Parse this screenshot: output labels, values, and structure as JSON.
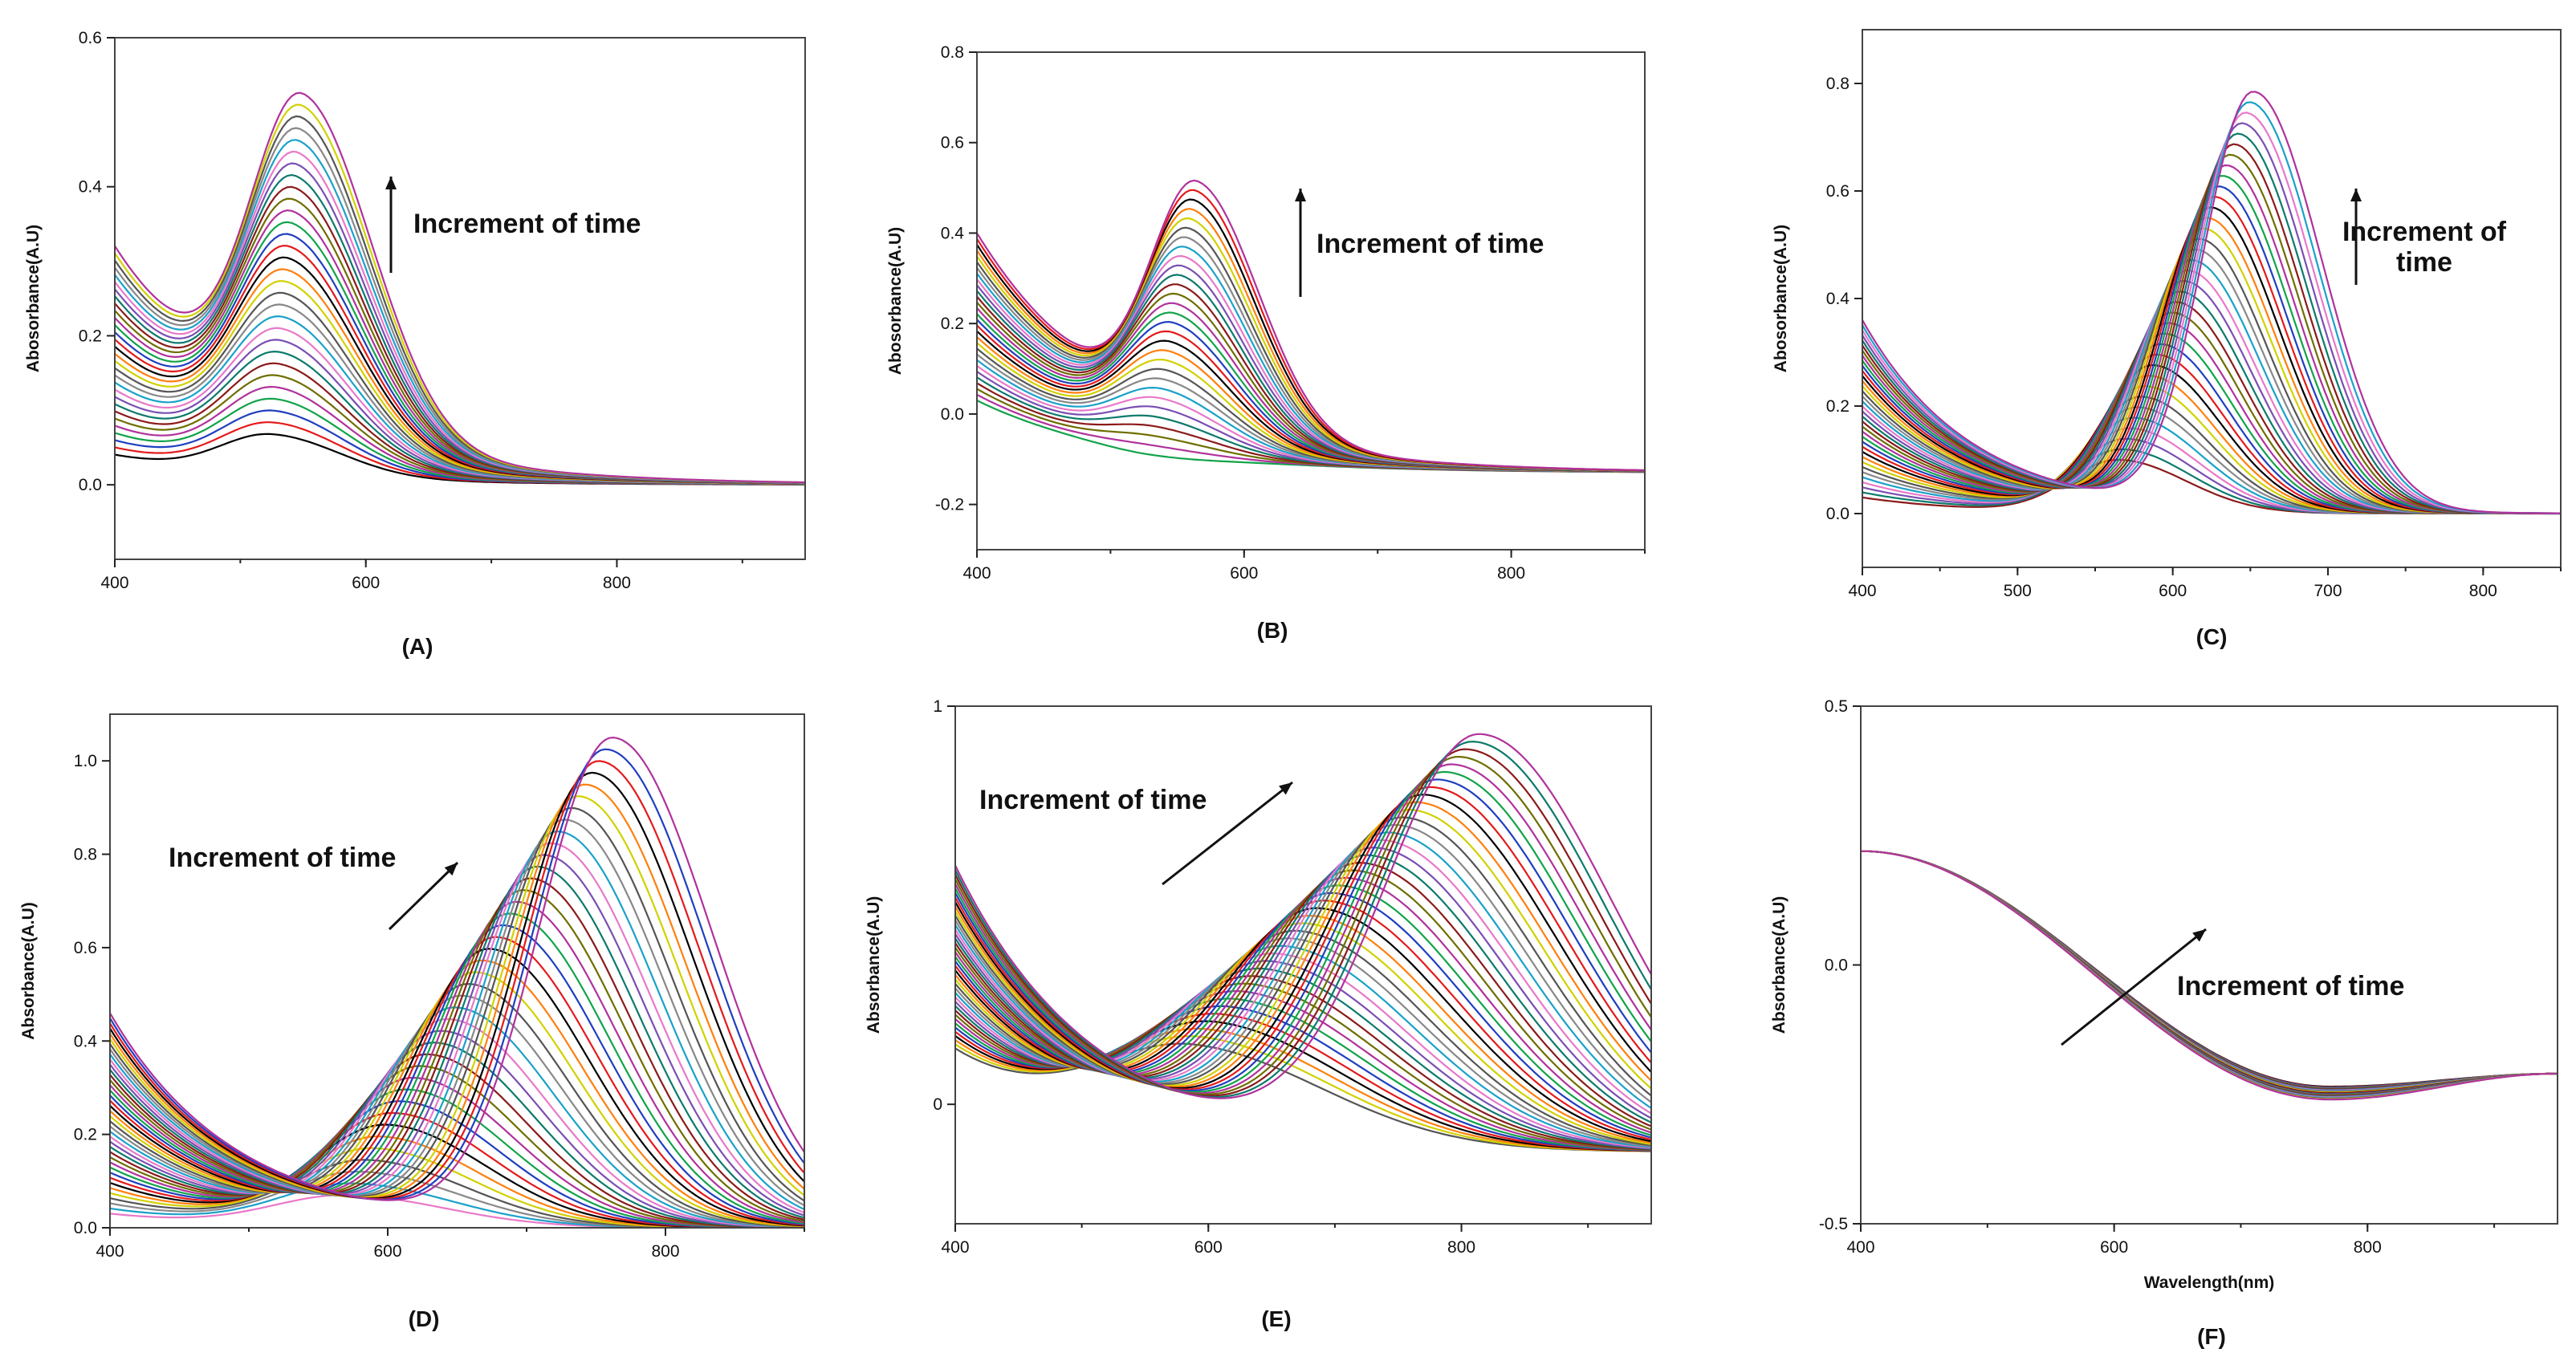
{
  "figure": {
    "series_palette": [
      "#000000",
      "#e41a1c",
      "#1f3fbf",
      "#12a34a",
      "#b0329d",
      "#6e6e00",
      "#8b1a1a",
      "#0c7a6b",
      "#7a4eb3",
      "#e879c8",
      "#1aa1c9",
      "#888888",
      "#555555",
      "#d1d100",
      "#ff7f0e"
    ]
  },
  "chart_data": [
    {
      "id": "A",
      "type": "line",
      "panel_label": "(A)",
      "ylabel": "Abosorbance(A.U)",
      "xlabel": "",
      "xlim": [
        400,
        950
      ],
      "ylim": [
        -0.1,
        0.6
      ],
      "xticks": [
        400,
        600,
        800
      ],
      "xtick_labels": [
        "400",
        "600",
        "800"
      ],
      "yticks": [
        0.0,
        0.2,
        0.4,
        0.6
      ],
      "ytick_labels": [
        "0.0",
        "0.2",
        "0.4",
        "0.6"
      ],
      "annotation": "Increment of time",
      "arrow": "vertical up",
      "model": {
        "kind": "peak",
        "n_series": 30,
        "peak_x_start": 525,
        "peak_x_end": 550,
        "peak_y_start": 0.068,
        "peak_y_end": 0.525,
        "base_start": 0.04,
        "base_end": 0.32,
        "base_decay": 120,
        "width": 48,
        "end_value": 0.0
      }
    },
    {
      "id": "B",
      "type": "line",
      "panel_label": "(B)",
      "ylabel": "Abosorbance(A.U)",
      "xlabel": "",
      "xlim": [
        400,
        900
      ],
      "ylim": [
        -0.3,
        0.8
      ],
      "xticks": [
        400,
        600,
        800
      ],
      "xtick_labels": [
        "400",
        "600",
        "800"
      ],
      "yticks": [
        -0.2,
        0.0,
        0.2,
        0.4,
        0.6,
        0.8
      ],
      "ytick_labels": [
        "-0.2",
        "0.0",
        "0.2",
        "0.4",
        "0.6",
        "0.8"
      ],
      "annotation": "Increment of time",
      "arrow": "vertical up",
      "model": {
        "kind": "peak",
        "n_series": 30,
        "peak_x_start": 530,
        "peak_x_end": 565,
        "peak_y_start": -0.09,
        "peak_y_end": 0.515,
        "base_start": 0.03,
        "base_end": 0.4,
        "base_decay": 110,
        "width": 40,
        "end_value": -0.13
      }
    },
    {
      "id": "C",
      "type": "line",
      "panel_label": "(C)",
      "ylabel": "Abosorbance(A.U)",
      "xlabel": "",
      "xlim": [
        400,
        850
      ],
      "ylim": [
        -0.1,
        0.9
      ],
      "xticks": [
        400,
        500,
        600,
        700,
        800
      ],
      "xtick_labels": [
        "400",
        "500",
        "600",
        "700",
        "800"
      ],
      "yticks": [
        0.0,
        0.2,
        0.4,
        0.6,
        0.8
      ],
      "ytick_labels": [
        "0.0",
        "0.2",
        "0.4",
        "0.6",
        "0.8"
      ],
      "annotation": "Increment of\ntime",
      "arrow": "vertical up",
      "model": {
        "kind": "peak",
        "n_series": 36,
        "peak_x_start": 565,
        "peak_x_end": 652,
        "peak_y_start": 0.1,
        "peak_y_end": 0.785,
        "base_start": 0.03,
        "base_end": 0.36,
        "base_decay": 70,
        "width": 38,
        "end_value": 0.0
      }
    },
    {
      "id": "D",
      "type": "line",
      "panel_label": "(D)",
      "ylabel": "Absorbance(A.U)",
      "xlabel": "",
      "xlim": [
        400,
        900
      ],
      "ylim": [
        0.0,
        1.1
      ],
      "xticks": [
        400,
        600,
        800
      ],
      "xtick_labels": [
        "400",
        "600",
        "800"
      ],
      "yticks": [
        0.0,
        0.2,
        0.4,
        0.6,
        0.8,
        1.0
      ],
      "ytick_labels": [
        "0.0",
        "0.2",
        "0.4",
        "0.6",
        "0.8",
        "1.0"
      ],
      "annotation": "Increment of time",
      "arrow": "diagonal up-right",
      "model": {
        "kind": "peak",
        "n_series": 40,
        "peak_x_start": 570,
        "peak_x_end": 762,
        "peak_y_start": 0.07,
        "peak_y_end": 1.05,
        "base_start": 0.03,
        "base_end": 0.46,
        "base_decay": 90,
        "width": 62,
        "end_value": 0.0
      }
    },
    {
      "id": "E",
      "type": "line",
      "panel_label": "(E)",
      "ylabel": "Absorbance(A.U)",
      "xlabel": "",
      "xlim": [
        400,
        950
      ],
      "ylim": [
        -0.3,
        1.0
      ],
      "xticks": [
        400,
        600,
        800
      ],
      "xtick_labels": [
        "400",
        "600",
        "800"
      ],
      "yticks": [
        0,
        1
      ],
      "ytick_labels": [
        "0",
        "1"
      ],
      "annotation": "Increment of time",
      "arrow": "diagonal up-right",
      "model": {
        "kind": "peak",
        "n_series": 42,
        "peak_x_start": 590,
        "peak_x_end": 815,
        "peak_y_start": 0.15,
        "peak_y_end": 0.93,
        "base_start": 0.13,
        "base_end": 0.6,
        "base_decay": 110,
        "width": 90,
        "end_value": -0.12
      }
    },
    {
      "id": "F",
      "type": "line",
      "panel_label": "(F)",
      "ylabel": "Absorbance(A.U)",
      "xlabel": "Wavelength(nm)",
      "xlim": [
        400,
        950
      ],
      "ylim": [
        -0.5,
        0.5
      ],
      "xticks": [
        400,
        600,
        800
      ],
      "xtick_labels": [
        "400",
        "600",
        "800"
      ],
      "yticks": [
        -0.5,
        0.0,
        0.5
      ],
      "ytick_labels": [
        "-0.5",
        "0.0",
        "0.5"
      ],
      "annotation": "Increment of time",
      "arrow": "diagonal up-right",
      "model": {
        "kind": "decline",
        "n_series": 30,
        "start_value": 0.22,
        "min_x": 770,
        "min_start": -0.235,
        "min_end": -0.26,
        "end_value": -0.21
      }
    }
  ]
}
